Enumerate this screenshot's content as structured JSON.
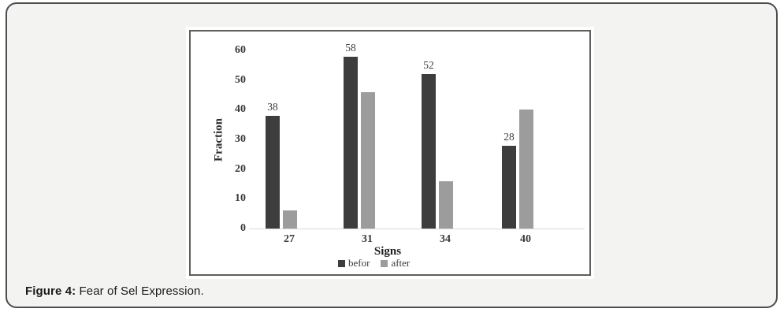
{
  "caption": {
    "prefix": "Figure 4:",
    "text": " Fear of Sel Expression."
  },
  "chart_data": {
    "type": "bar",
    "categories": [
      "27",
      "31",
      "34",
      "40"
    ],
    "series": [
      {
        "name": "befor",
        "color": "#3d3d3d",
        "values": [
          38,
          58,
          52,
          28
        ],
        "show_labels": true
      },
      {
        "name": "after",
        "color": "#9c9c9c",
        "values": [
          6,
          46,
          16,
          40
        ],
        "show_labels": false
      }
    ],
    "title": "",
    "xlabel": "Signs",
    "ylabel": "Fraction",
    "ylim": [
      0,
      60
    ],
    "yticks": [
      0,
      10,
      20,
      30,
      40,
      50,
      60
    ],
    "grid": false,
    "legend_position": "bottom",
    "axis_line_color": "#d8d8d8"
  },
  "colors": {
    "card_background": "#f3f3f2",
    "card_border": "#4d4d4d",
    "panel_border": "#5f5f5f",
    "series_befor": "#3d3d3d",
    "series_after": "#9c9c9c"
  }
}
